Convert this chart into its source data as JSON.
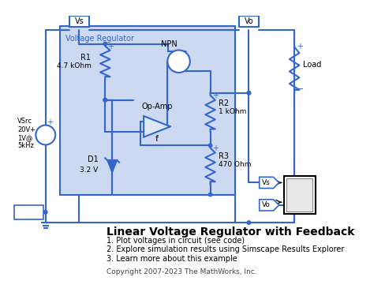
{
  "bg_color": "#ffffff",
  "line_color": "#3366cc",
  "fill_color": "#ccd9f0",
  "border_color": "#3366cc",
  "text_color": "#000000",
  "title": "Linear Voltage Regulator with Feedback",
  "items": [
    "1. Plot voltages in circuit (see code)",
    "2. Explore simulation results using Simscape Results Explorer",
    "3. Learn more about this example"
  ],
  "copyright": "Copyright 2007-2023 The MathWorks, Inc.",
  "subsystem_label": "Voltage Regulator",
  "components": {
    "R1": "4.7 kOhm",
    "R2": "1 kOhm",
    "R3": "470 Ohm",
    "D1": "3.2 V",
    "NPN": "NPN",
    "opamp": "Op-Amp",
    "VSrc": "VSrc\n20V+\n1V@\n5kHz",
    "Load": "Load"
  }
}
